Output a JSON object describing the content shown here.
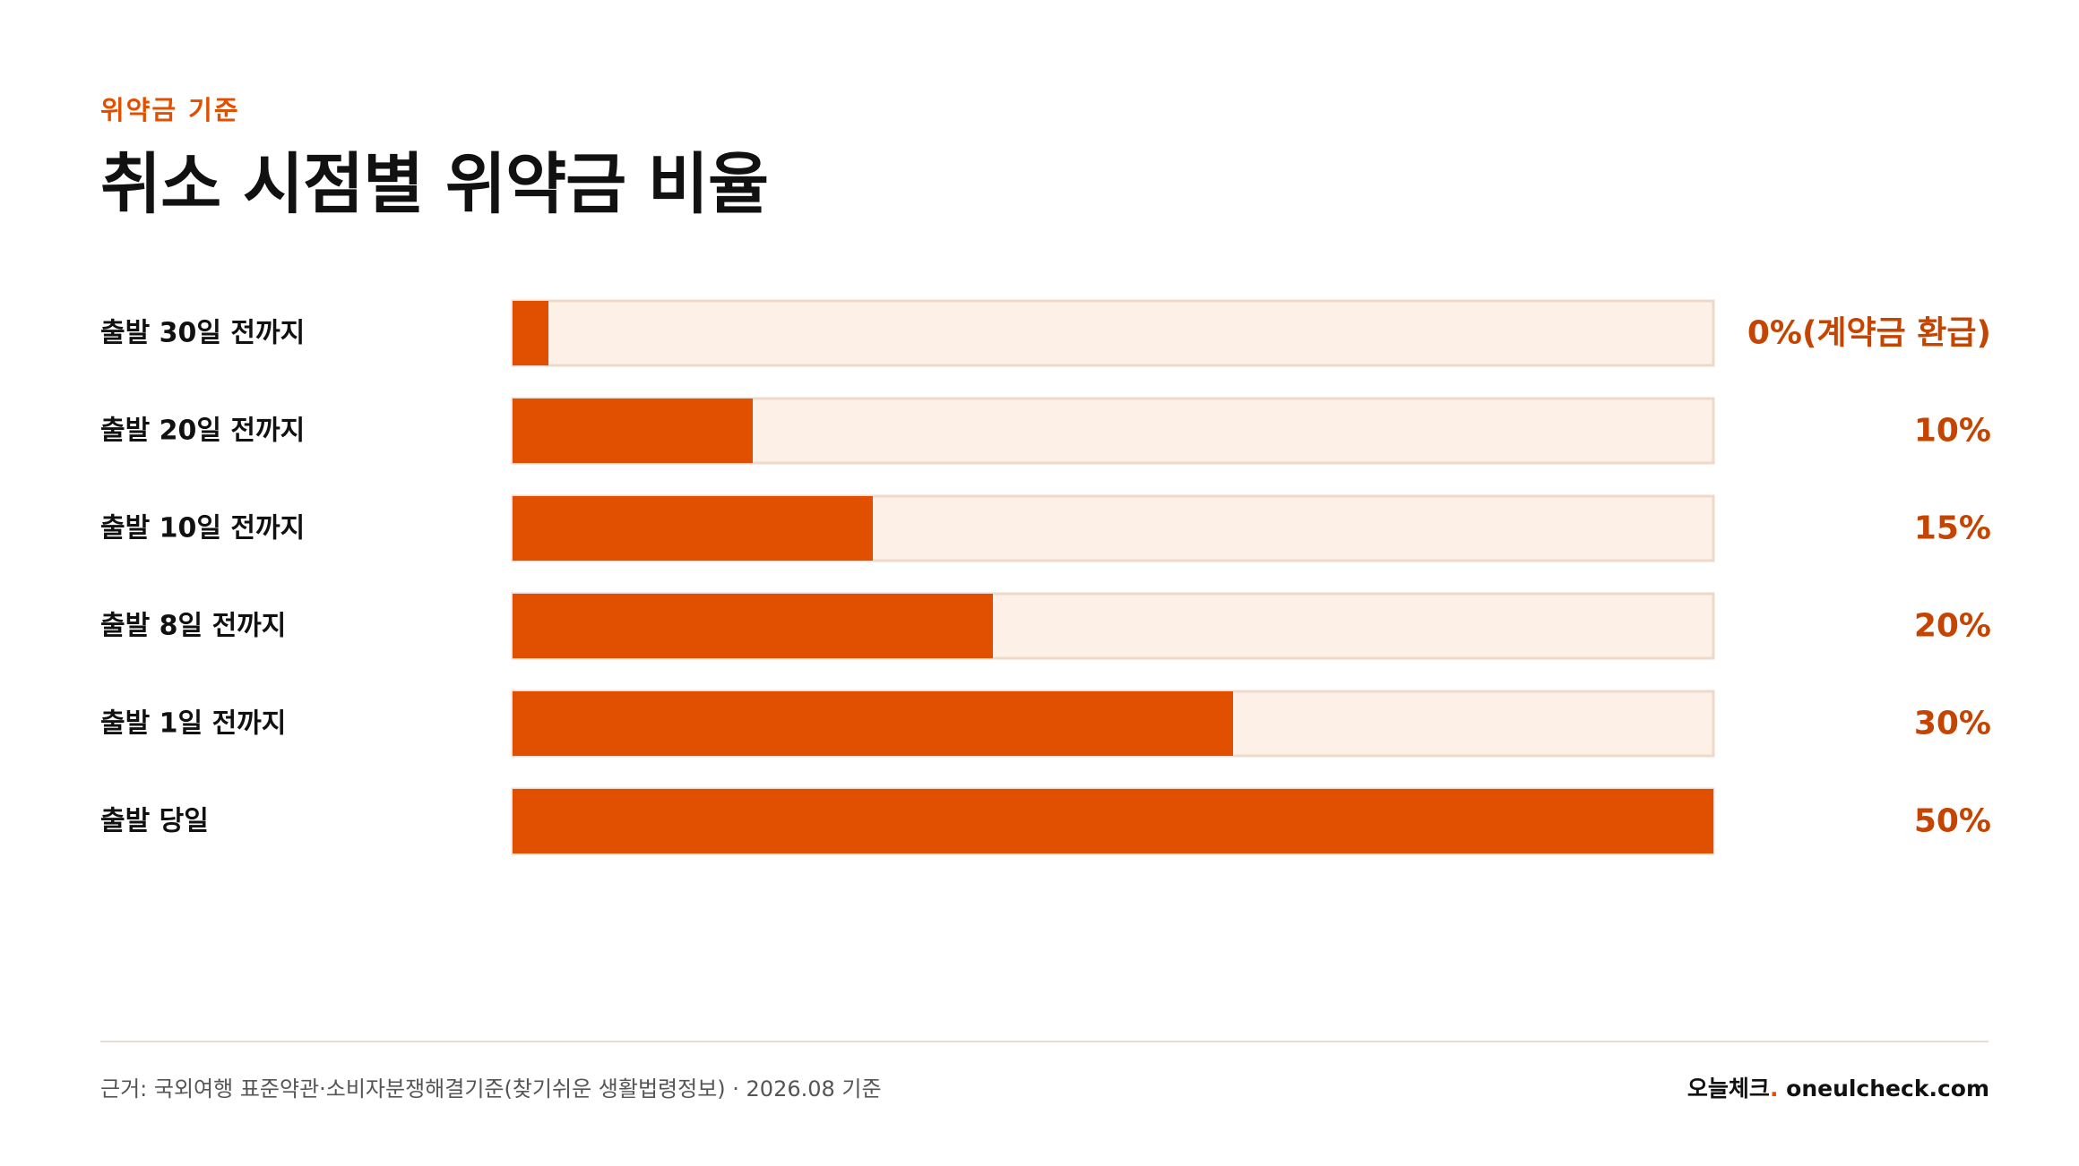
{
  "header": {
    "eyebrow": "위약금 기준",
    "title": "취소 시점별 위약금 비율"
  },
  "colors": {
    "accent": "#e05000",
    "value_text": "#c54400",
    "track_bg": "#fdf0e7",
    "track_border": "#efd9cb",
    "label_text": "#111111"
  },
  "chart_data": {
    "type": "bar",
    "orientation": "horizontal",
    "categories": [
      "출발 30일 전까지",
      "출발 20일 전까지",
      "출발 10일 전까지",
      "출발 8일 전까지",
      "출발 1일 전까지",
      "출발 당일"
    ],
    "values": [
      0,
      10,
      15,
      20,
      30,
      50
    ],
    "value_labels": [
      "0%(계약금 환급)",
      "10%",
      "15%",
      "20%",
      "30%",
      "50%"
    ],
    "xlim": [
      0,
      50
    ],
    "grid": false
  },
  "footer": {
    "source": "근거: 국외여행 표준약관·소비자분쟁해결기준(찾기쉬운 생활법령정보) · 2026.08 기준",
    "brand_name": "오늘체크",
    "brand_dot": ".",
    "brand_domain": " oneulcheck.com"
  }
}
